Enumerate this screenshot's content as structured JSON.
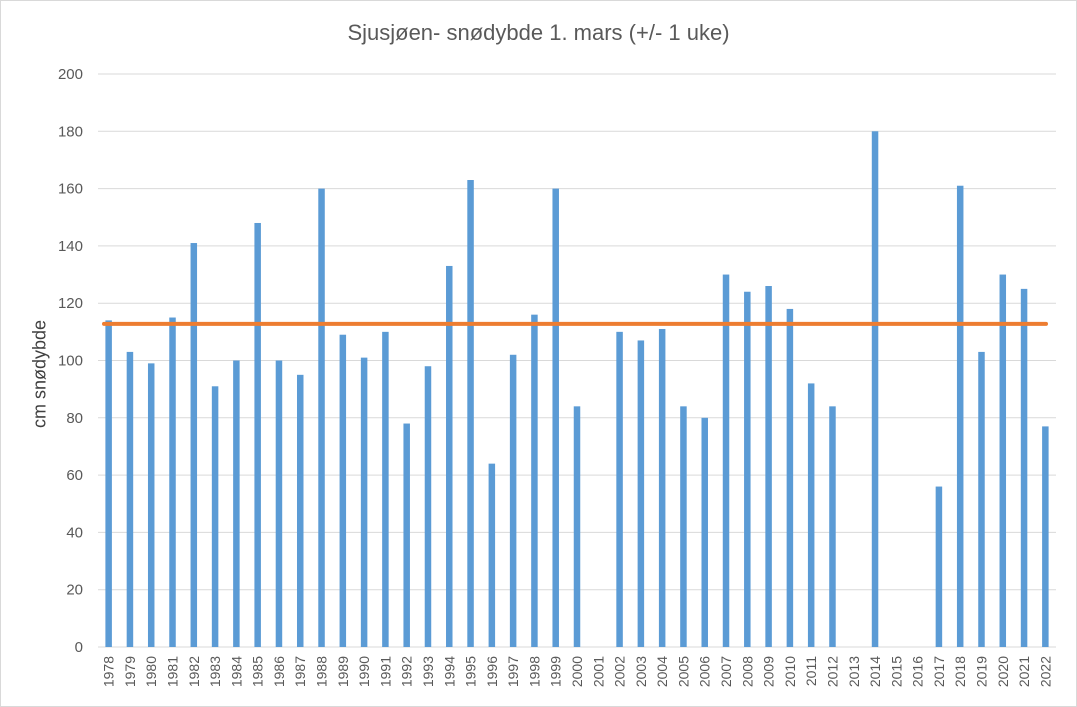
{
  "chart_data": {
    "type": "bar",
    "title": "Sjusjøen- snødybde  1. mars (+/- 1 uke)",
    "ylabel": "cm snødybde",
    "xlabel": "",
    "ylim": [
      0,
      200
    ],
    "yticks": [
      0,
      20,
      40,
      60,
      80,
      100,
      120,
      140,
      160,
      180,
      200
    ],
    "grid": true,
    "bar_color": "#5b9bd5",
    "mean_line": {
      "value": 112.8,
      "color": "#ed7d31"
    },
    "categories": [
      "1978",
      "1979",
      "1980",
      "1981",
      "1982",
      "1983",
      "1984",
      "1985",
      "1986",
      "1987",
      "1988",
      "1989",
      "1990",
      "1991",
      "1992",
      "1993",
      "1994",
      "1995",
      "1996",
      "1997",
      "1998",
      "1999",
      "2000",
      "2001",
      "2002",
      "2003",
      "2004",
      "2005",
      "2006",
      "2007",
      "2008",
      "2009",
      "2010",
      "2011",
      "2012",
      "2013",
      "2014",
      "2015",
      "2016",
      "2017",
      "2018",
      "2019",
      "2020",
      "2021",
      "2022"
    ],
    "values": [
      114,
      103,
      99,
      115,
      141,
      91,
      100,
      148,
      100,
      95,
      160,
      109,
      101,
      110,
      78,
      98,
      133,
      163,
      64,
      102,
      116,
      160,
      84,
      null,
      110,
      107,
      111,
      84,
      80,
      130,
      124,
      126,
      118,
      92,
      84,
      null,
      180,
      null,
      null,
      56,
      161,
      103,
      130,
      125,
      77
    ]
  }
}
